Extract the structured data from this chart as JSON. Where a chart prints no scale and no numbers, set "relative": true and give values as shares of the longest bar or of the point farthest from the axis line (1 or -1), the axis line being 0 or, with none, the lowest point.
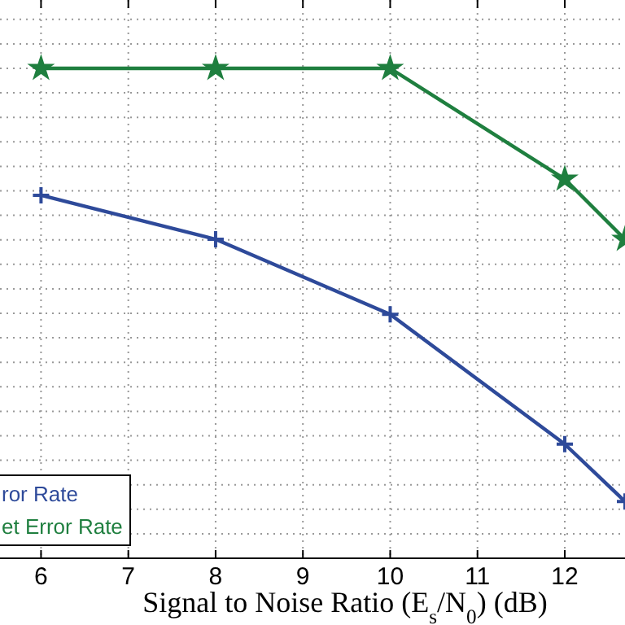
{
  "chart_data": {
    "type": "line",
    "xlabel": "Signal to Noise Ratio  (E$_{s}$/N$_{0}$)   (dB)",
    "relative": true,
    "xlim": [
      5.53,
      12.69
    ],
    "xticks": [
      6,
      7,
      8,
      9,
      10,
      11,
      12
    ],
    "grid": true,
    "legend": "bottom left",
    "line_style": "solid",
    "series": [
      {
        "name": "ror Rate",
        "color": "#2e4a9a",
        "marker": "cross",
        "x": [
          6,
          8,
          10,
          12,
          12.69
        ],
        "values": [
          0.741,
          0.651,
          0.498,
          0.233,
          0.116
        ]
      },
      {
        "name": "et Error Rate",
        "color": "#1f7f3f",
        "marker": "star",
        "x": [
          6,
          8,
          10,
          12,
          12.69
        ],
        "values": [
          1,
          1,
          1,
          0.774,
          0.651
        ]
      }
    ]
  }
}
